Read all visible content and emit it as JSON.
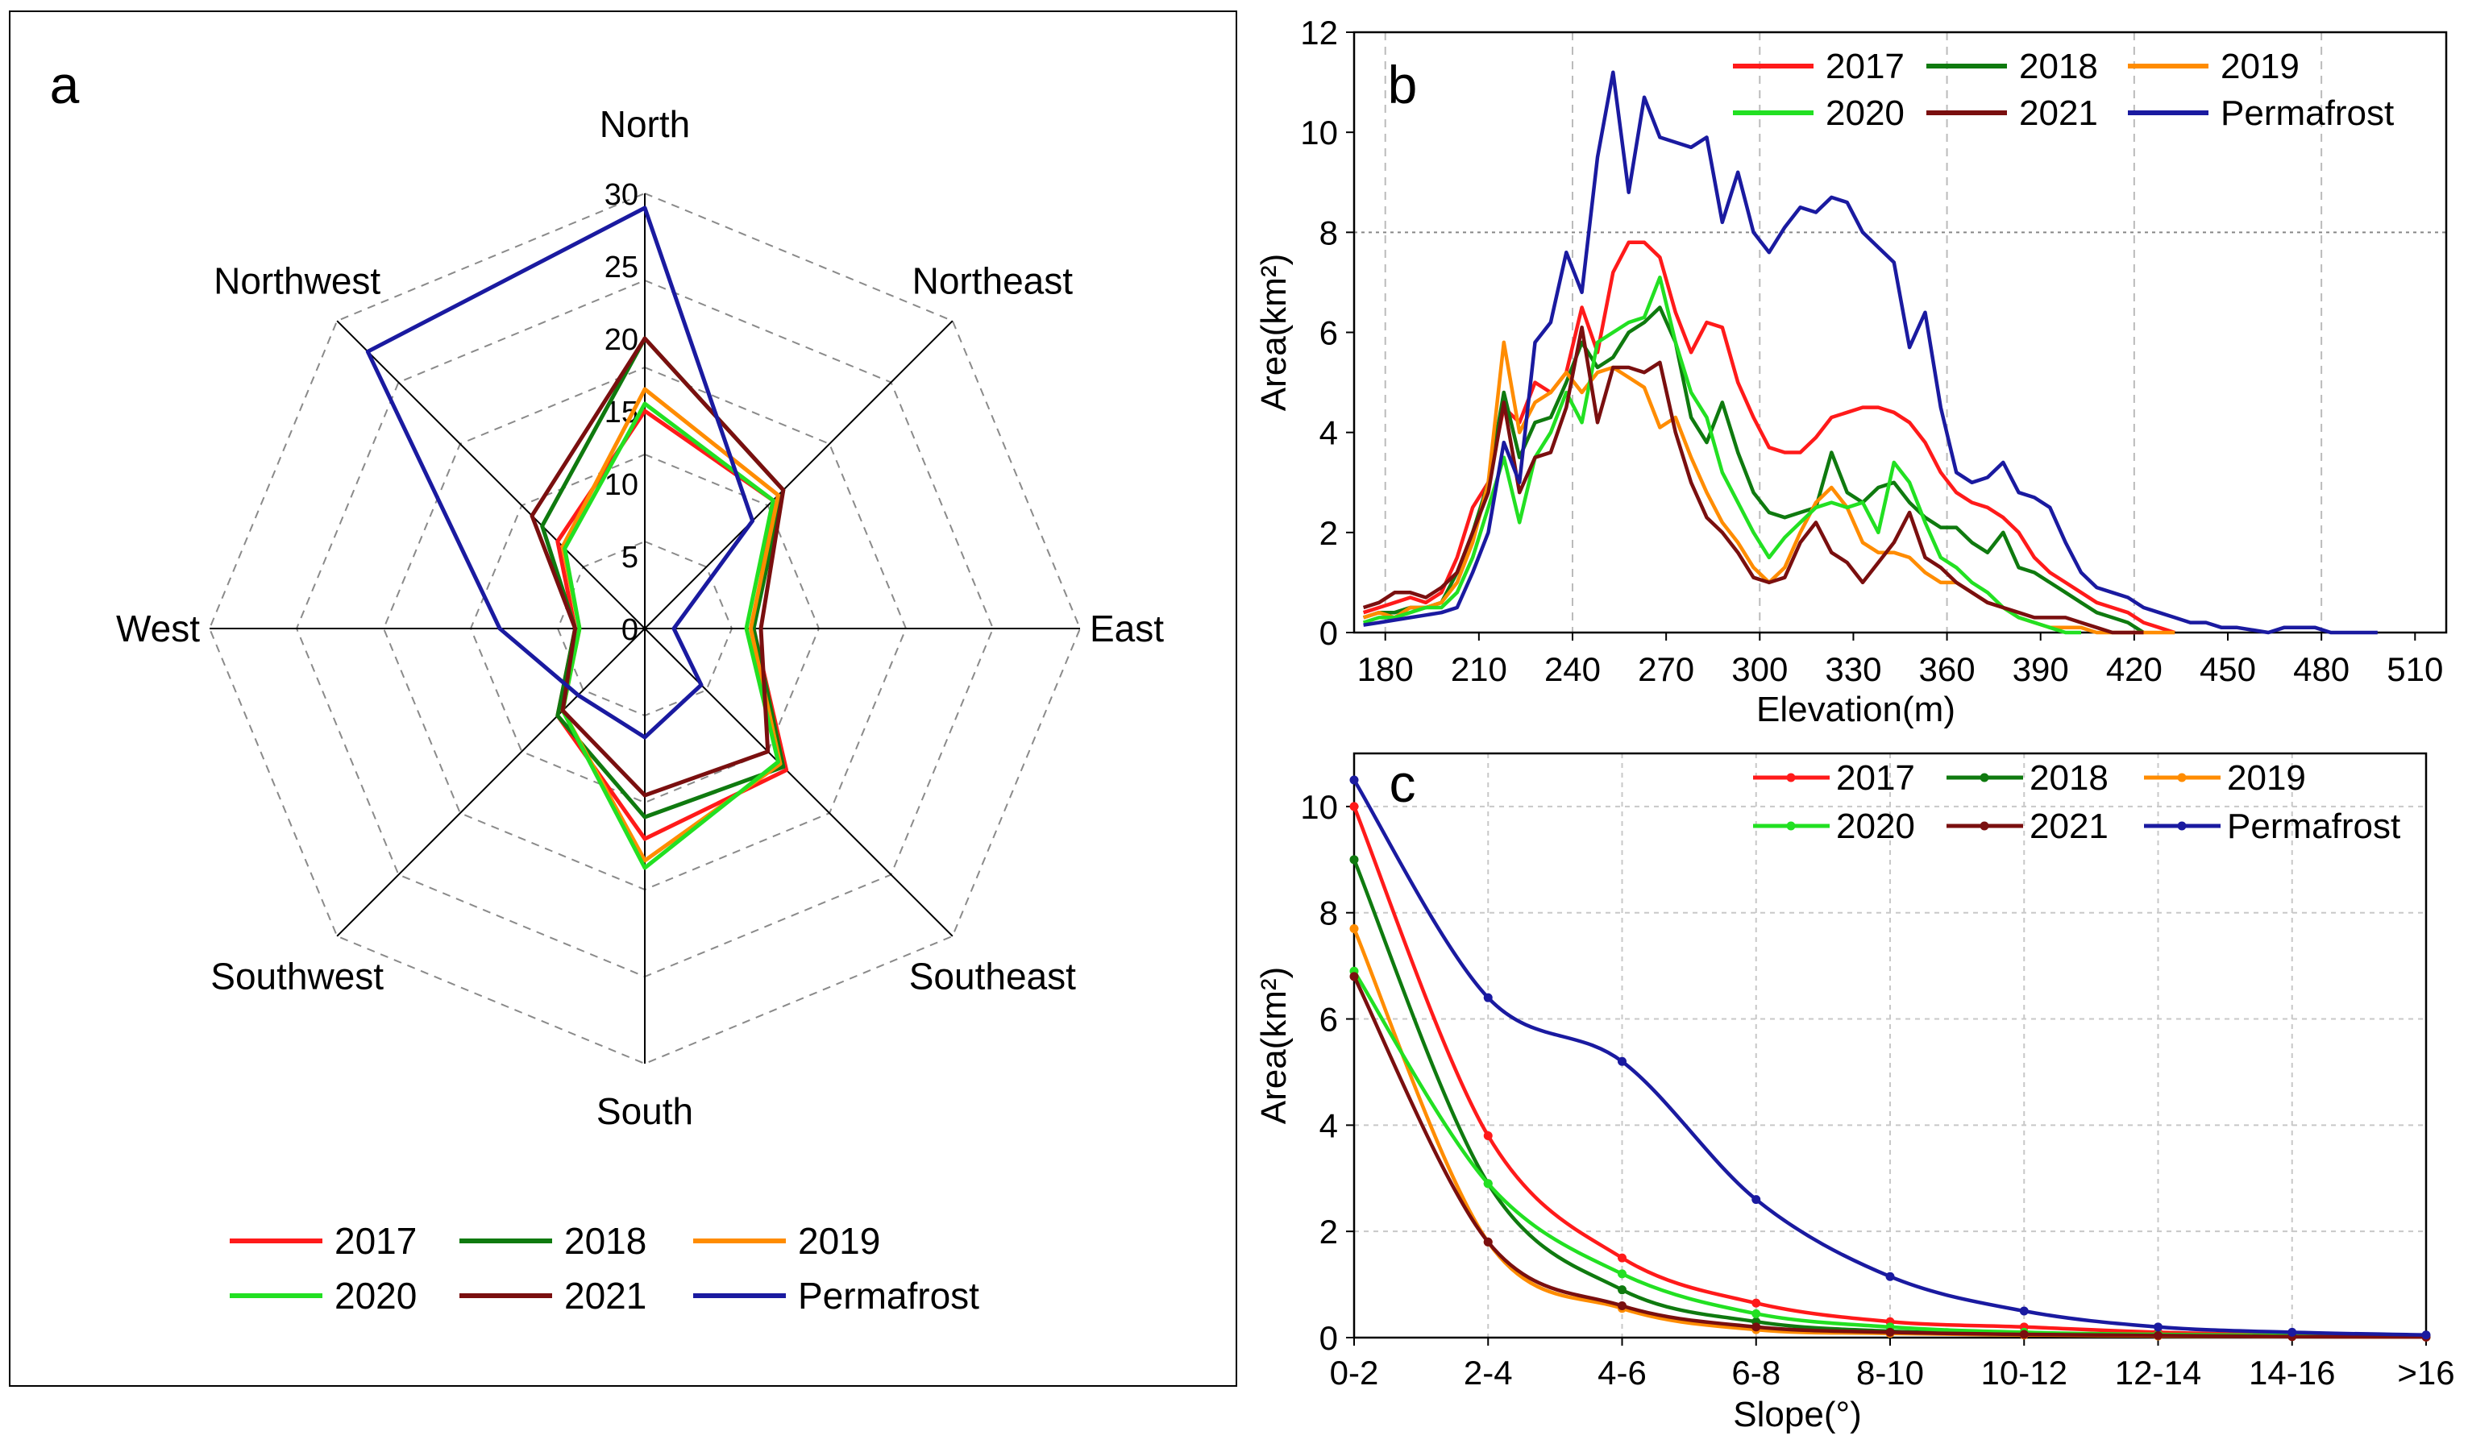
{
  "colors": {
    "2017": "#ff1a1a",
    "2018": "#0f7a0f",
    "2019": "#ff8c00",
    "2020": "#22e022",
    "2021": "#7a0f0f",
    "Permafrost": "#1a1aa0"
  },
  "chart_data": [
    {
      "panel": "a",
      "type": "radar",
      "directions": [
        "North",
        "Northeast",
        "East",
        "Southeast",
        "South",
        "Southwest",
        "West",
        "Northwest"
      ],
      "rlim": [
        0,
        30
      ],
      "ticks": [
        0,
        5,
        10,
        15,
        20,
        25,
        30
      ],
      "tick_labels": [
        "0",
        "5",
        "10",
        "15",
        "20",
        "25",
        "30"
      ],
      "legend": [
        "2017",
        "2018",
        "2019",
        "2020",
        "2021",
        "Permafrost"
      ],
      "series": [
        {
          "name": "2017",
          "values": [
            15,
            12.5,
            7.5,
            13.8,
            14.5,
            8.5,
            4.8,
            8.5
          ]
        },
        {
          "name": "2018",
          "values": [
            20,
            13.5,
            7.5,
            13.5,
            13,
            8.5,
            4.8,
            10
          ]
        },
        {
          "name": "2019",
          "values": [
            16.5,
            13,
            7.3,
            13.2,
            16,
            8,
            4.5,
            8
          ]
        },
        {
          "name": "2020",
          "values": [
            15.5,
            12.5,
            7,
            13,
            16.5,
            8,
            4.5,
            7.8
          ]
        },
        {
          "name": "2021",
          "values": [
            20,
            13.5,
            8,
            12,
            11.5,
            8,
            4.8,
            11
          ]
        },
        {
          "name": "Permafrost",
          "values": [
            29,
            10.5,
            2,
            5.5,
            7.5,
            6.5,
            10,
            27
          ]
        }
      ]
    },
    {
      "panel": "b",
      "type": "line",
      "xlabel": "Elevation(m)",
      "ylabel": "Area(km²)",
      "xlim": [
        170,
        520
      ],
      "ylim": [
        0,
        12
      ],
      "xticks": [
        180,
        210,
        240,
        270,
        300,
        330,
        360,
        390,
        420,
        450,
        480,
        510
      ],
      "yticks": [
        0,
        2,
        4,
        6,
        8,
        10,
        12
      ],
      "legend": [
        "2017",
        "2018",
        "2019",
        "2020",
        "2021",
        "Permafrost"
      ],
      "series": [
        {
          "name": "2017",
          "x": [
            173,
            178,
            183,
            188,
            193,
            198,
            203,
            208,
            213,
            218,
            223,
            228,
            233,
            238,
            243,
            248,
            253,
            258,
            263,
            268,
            273,
            278,
            283,
            288,
            293,
            298,
            303,
            308,
            313,
            318,
            323,
            328,
            333,
            338,
            343,
            348,
            353,
            358,
            363,
            368,
            373,
            378,
            383,
            388,
            393,
            398,
            403,
            408,
            413,
            418,
            423,
            428,
            433
          ],
          "y": [
            0.4,
            0.5,
            0.6,
            0.7,
            0.6,
            0.8,
            1.5,
            2.5,
            3,
            4.5,
            4.2,
            5,
            4.8,
            5.2,
            6.5,
            5.6,
            7.2,
            7.8,
            7.8,
            7.5,
            6.4,
            5.6,
            6.2,
            6.1,
            5,
            4.3,
            3.7,
            3.6,
            3.6,
            3.9,
            4.3,
            4.4,
            4.5,
            4.5,
            4.4,
            4.2,
            3.8,
            3.2,
            2.8,
            2.6,
            2.5,
            2.3,
            2,
            1.5,
            1.2,
            1,
            0.8,
            0.6,
            0.5,
            0.4,
            0.2,
            0.1,
            0
          ]
        },
        {
          "name": "2018",
          "x": [
            173,
            178,
            183,
            188,
            193,
            198,
            203,
            208,
            213,
            218,
            223,
            228,
            233,
            238,
            243,
            248,
            253,
            258,
            263,
            268,
            273,
            278,
            283,
            288,
            293,
            298,
            303,
            308,
            313,
            318,
            323,
            328,
            333,
            338,
            343,
            348,
            353,
            358,
            363,
            368,
            373,
            378,
            383,
            388,
            393,
            398,
            403,
            408,
            413,
            418,
            423
          ],
          "y": [
            0.3,
            0.4,
            0.4,
            0.5,
            0.5,
            0.6,
            1.2,
            2,
            3,
            4.8,
            3.5,
            4.2,
            4.3,
            5,
            5.8,
            5.3,
            5.5,
            6,
            6.2,
            6.5,
            5.8,
            4.3,
            3.8,
            4.6,
            3.6,
            2.8,
            2.4,
            2.3,
            2.4,
            2.5,
            3.6,
            2.8,
            2.6,
            2.9,
            3,
            2.6,
            2.3,
            2.1,
            2.1,
            1.8,
            1.6,
            2,
            1.3,
            1.2,
            1,
            0.8,
            0.6,
            0.4,
            0.3,
            0.2,
            0
          ]
        },
        {
          "name": "2019",
          "x": [
            173,
            178,
            183,
            188,
            193,
            198,
            203,
            208,
            213,
            218,
            223,
            228,
            233,
            238,
            243,
            248,
            253,
            258,
            263,
            268,
            273,
            278,
            283,
            288,
            293,
            298,
            303,
            308,
            313,
            318,
            323,
            328,
            333,
            338,
            343,
            348,
            353,
            358,
            363,
            368,
            373,
            378,
            383,
            388,
            393,
            398,
            403,
            408,
            413,
            418,
            423,
            428,
            433
          ],
          "y": [
            0.3,
            0.4,
            0.3,
            0.5,
            0.5,
            0.6,
            1,
            1.8,
            3,
            5.8,
            4,
            4.6,
            4.8,
            5.2,
            4.8,
            5.2,
            5.3,
            5.1,
            4.9,
            4.1,
            4.3,
            3.5,
            2.8,
            2.2,
            1.8,
            1.3,
            1,
            1.3,
            2,
            2.6,
            2.9,
            2.5,
            1.8,
            1.6,
            1.6,
            1.5,
            1.2,
            1,
            1,
            0.8,
            0.6,
            0.5,
            0.3,
            0.2,
            0.1,
            0.1,
            0.1,
            0,
            0,
            0,
            0,
            0,
            0
          ]
        },
        {
          "name": "2020",
          "x": [
            173,
            178,
            183,
            188,
            193,
            198,
            203,
            208,
            213,
            218,
            223,
            228,
            233,
            238,
            243,
            248,
            253,
            258,
            263,
            268,
            273,
            278,
            283,
            288,
            293,
            298,
            303,
            308,
            313,
            318,
            323,
            328,
            333,
            338,
            343,
            348,
            353,
            358,
            363,
            368,
            373,
            378,
            383,
            388,
            393,
            398,
            403
          ],
          "y": [
            0.2,
            0.3,
            0.3,
            0.4,
            0.5,
            0.5,
            0.8,
            1.5,
            2.5,
            3.5,
            2.2,
            3.5,
            4,
            4.8,
            4.2,
            5.8,
            6,
            6.2,
            6.3,
            7.1,
            5.8,
            4.8,
            4.3,
            3.2,
            2.6,
            2,
            1.5,
            1.9,
            2.2,
            2.5,
            2.6,
            2.5,
            2.6,
            2,
            3.4,
            3,
            2.2,
            1.5,
            1.3,
            1,
            0.8,
            0.5,
            0.3,
            0.2,
            0.1,
            0,
            0
          ]
        },
        {
          "name": "2021",
          "x": [
            173,
            178,
            183,
            188,
            193,
            198,
            203,
            208,
            213,
            218,
            223,
            228,
            233,
            238,
            243,
            248,
            253,
            258,
            263,
            268,
            273,
            278,
            283,
            288,
            293,
            298,
            303,
            308,
            313,
            318,
            323,
            328,
            333,
            338,
            343,
            348,
            353,
            358,
            363,
            368,
            373,
            378,
            383,
            388,
            393,
            398,
            403,
            408,
            413,
            418,
            423
          ],
          "y": [
            0.5,
            0.6,
            0.8,
            0.8,
            0.7,
            0.9,
            1.2,
            2,
            2.8,
            4.6,
            2.8,
            3.5,
            3.6,
            4.5,
            6.1,
            4.2,
            5.3,
            5.3,
            5.2,
            5.4,
            4,
            3,
            2.3,
            2,
            1.6,
            1.1,
            1,
            1.1,
            1.8,
            2.2,
            1.6,
            1.4,
            1,
            1.4,
            1.8,
            2.4,
            1.5,
            1.3,
            1,
            0.8,
            0.6,
            0.5,
            0.4,
            0.3,
            0.3,
            0.3,
            0.2,
            0.1,
            0,
            0,
            0
          ]
        },
        {
          "name": "Permafrost",
          "x": [
            173,
            178,
            183,
            188,
            193,
            198,
            203,
            208,
            213,
            218,
            223,
            228,
            233,
            238,
            243,
            248,
            253,
            258,
            263,
            268,
            273,
            278,
            283,
            288,
            293,
            298,
            303,
            308,
            313,
            318,
            323,
            328,
            333,
            338,
            343,
            348,
            353,
            358,
            363,
            368,
            373,
            378,
            383,
            388,
            393,
            398,
            403,
            408,
            413,
            418,
            423,
            428,
            433,
            438,
            443,
            448,
            453,
            458,
            463,
            468,
            473,
            478,
            483,
            488,
            493,
            498
          ],
          "y": [
            0.15,
            0.2,
            0.25,
            0.3,
            0.35,
            0.4,
            0.5,
            1.2,
            2,
            3.8,
            3,
            5.8,
            6.2,
            7.6,
            6.8,
            9.5,
            11.2,
            8.8,
            10.7,
            9.9,
            9.8,
            9.7,
            9.9,
            8.2,
            9.2,
            8,
            7.6,
            8.1,
            8.5,
            8.4,
            8.7,
            8.6,
            8,
            7.7,
            7.4,
            5.7,
            6.4,
            4.5,
            3.2,
            3,
            3.1,
            3.4,
            2.8,
            2.7,
            2.5,
            1.8,
            1.2,
            0.9,
            0.8,
            0.7,
            0.5,
            0.4,
            0.3,
            0.2,
            0.2,
            0.1,
            0.1,
            0.05,
            0,
            0.1,
            0.1,
            0.1,
            0,
            0,
            0,
            0
          ]
        }
      ]
    },
    {
      "panel": "c",
      "type": "line",
      "xlabel": "Slope(°)",
      "ylabel": "Area(km²)",
      "categories": [
        "0-2",
        "2-4",
        "4-6",
        "6-8",
        "8-10",
        "10-12",
        "12-14",
        "14-16",
        ">16"
      ],
      "ylim": [
        0,
        11
      ],
      "yticks": [
        0,
        2,
        4,
        6,
        8,
        10
      ],
      "legend": [
        "2017",
        "2018",
        "2019",
        "2020",
        "2021",
        "Permafrost"
      ],
      "series": [
        {
          "name": "2017",
          "values": [
            10,
            3.8,
            1.5,
            0.65,
            0.3,
            0.2,
            0.1,
            0.05,
            0.03
          ]
        },
        {
          "name": "2018",
          "values": [
            9,
            2.9,
            0.9,
            0.3,
            0.12,
            0.08,
            0.05,
            0.03,
            0.02
          ]
        },
        {
          "name": "2019",
          "values": [
            7.7,
            1.8,
            0.55,
            0.15,
            0.08,
            0.05,
            0.03,
            0.02,
            0.01
          ]
        },
        {
          "name": "2020",
          "values": [
            6.9,
            2.9,
            1.2,
            0.45,
            0.2,
            0.1,
            0.06,
            0.04,
            0.02
          ]
        },
        {
          "name": "2021",
          "values": [
            6.8,
            1.8,
            0.6,
            0.2,
            0.1,
            0.06,
            0.04,
            0.02,
            0.01
          ]
        },
        {
          "name": "Permafrost",
          "values": [
            10.5,
            6.4,
            5.2,
            2.6,
            1.15,
            0.5,
            0.2,
            0.1,
            0.05
          ]
        }
      ]
    }
  ]
}
